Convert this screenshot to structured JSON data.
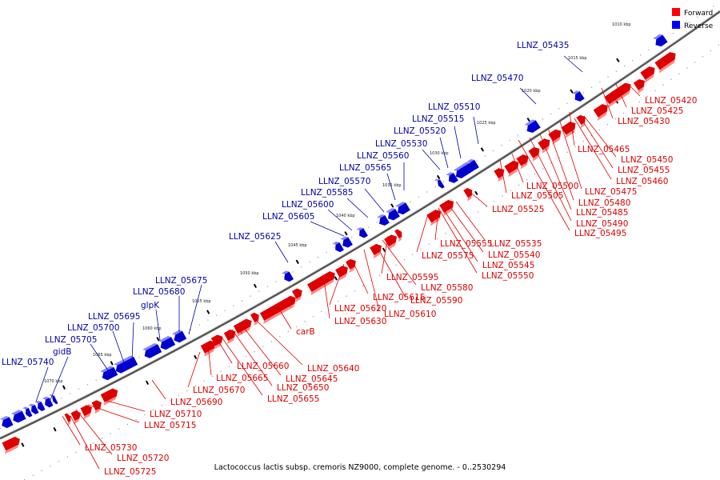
{
  "caption": "Lactococcus lactis subsp. cremoris NZ9000, complete genome. - 0..2530294",
  "legend": [
    {
      "label": "Forward",
      "color": "#ff0000"
    },
    {
      "label": "Reverse",
      "color": "#0000ff"
    }
  ],
  "colors": {
    "forward": "#dd0000",
    "reverse": "#0000cc",
    "backbone": "#555555"
  },
  "ticks": [
    "1010 kbp",
    "1015 kbp",
    "1020 kbp",
    "1025 kbp",
    "1030 kbp",
    "1035 kbp",
    "1040 kbp",
    "1045 kbp",
    "1050 kbp",
    "1055 kbp",
    "1060 kbp",
    "1065 kbp",
    "1070 kbp"
  ],
  "reverse_labels": [
    "LLNZ_05435",
    "LLNZ_05470",
    "LLNZ_05510",
    "LLNZ_05515",
    "LLNZ_05520",
    "LLNZ_05530",
    "LLNZ_05560",
    "LLNZ_05565",
    "LLNZ_05570",
    "LLNZ_05585",
    "LLNZ_05600",
    "LLNZ_05605",
    "LLNZ_05625",
    "LLNZ_05675",
    "LLNZ_05680",
    "glpK",
    "LLNZ_05695",
    "LLNZ_05700",
    "LLNZ_05705",
    "gidB",
    "LLNZ_05740"
  ],
  "forward_labels": [
    "LLNZ_05420",
    "LLNZ_05425",
    "LLNZ_05430",
    "LLNZ_05465",
    "LLNZ_05450",
    "LLNZ_05455",
    "LLNZ_05460",
    "LLNZ_05475",
    "LLNZ_05480",
    "LLNZ_05485",
    "LLNZ_05490",
    "LLNZ_05495",
    "LLNZ_05500",
    "LLNZ_05505",
    "LLNZ_05525",
    "LLNZ_05535",
    "LLNZ_05540",
    "LLNZ_05545",
    "LLNZ_05550",
    "LLNZ_05555",
    "LLNZ_05575",
    "LLNZ_05595",
    "LLNZ_05580",
    "LLNZ_05590",
    "LLNZ_05615",
    "LLNZ_05610",
    "LLNZ_05620",
    "LLNZ_05630",
    "carB",
    "LLNZ_05640",
    "LLNZ_05645",
    "LLNZ_05650",
    "LLNZ_05655",
    "LLNZ_05660",
    "LLNZ_05665",
    "LLNZ_05670",
    "LLNZ_05690",
    "LLNZ_05710",
    "LLNZ_05715",
    "LLNZ_05720",
    "LLNZ_05725",
    "LLNZ_05730"
  ]
}
